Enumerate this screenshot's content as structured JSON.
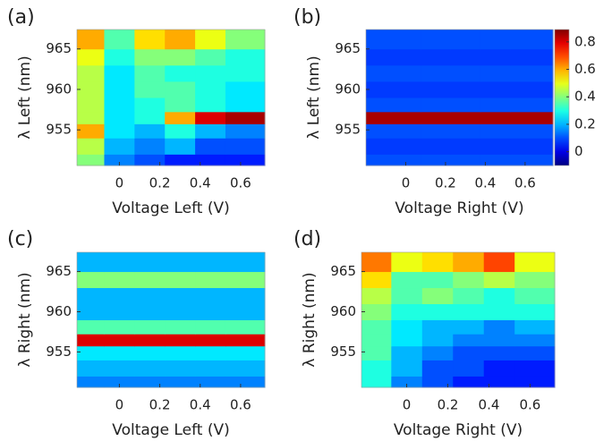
{
  "chart_data": [
    {
      "type": "heatmap",
      "title": "(a)",
      "xlabel": "Voltage Left (V)",
      "ylabel": "λ Left (nm)",
      "x": [
        -0.15,
        0,
        0.15,
        0.3,
        0.45,
        0.6
      ],
      "y": [
        951,
        953,
        955,
        956.5,
        958,
        960,
        962,
        964,
        966
      ],
      "z": [
        [
          0.4,
          0.15,
          0.1,
          0.05,
          0.05,
          0.05
        ],
        [
          0.45,
          0.2,
          0.15,
          0.2,
          0.1,
          0.1
        ],
        [
          0.6,
          0.25,
          0.2,
          0.3,
          0.2,
          0.15
        ],
        [
          0.45,
          0.25,
          0.3,
          0.6,
          0.8,
          0.85
        ],
        [
          0.45,
          0.25,
          0.3,
          0.35,
          0.3,
          0.25
        ],
        [
          0.45,
          0.25,
          0.35,
          0.35,
          0.3,
          0.25
        ],
        [
          0.45,
          0.25,
          0.35,
          0.3,
          0.3,
          0.3
        ],
        [
          0.5,
          0.3,
          0.4,
          0.4,
          0.35,
          0.3
        ],
        [
          0.6,
          0.35,
          0.55,
          0.6,
          0.5,
          0.4
        ]
      ],
      "xlim": [
        -0.21,
        0.72
      ],
      "ylim": [
        950.6,
        967.4
      ],
      "xticks": [
        0,
        0.2,
        0.4,
        0.6
      ],
      "yticks": [
        955,
        960,
        965
      ],
      "clim": [
        -0.1,
        0.89
      ]
    },
    {
      "type": "heatmap",
      "title": "(b)",
      "xlabel": "Voltage Right (V)",
      "ylabel": "λ Left (nm)",
      "x": [
        -0.15,
        0,
        0.15,
        0.3,
        0.45,
        0.6
      ],
      "y": [
        951,
        953,
        955,
        956.5,
        958,
        960,
        962,
        964,
        966
      ],
      "z": [
        [
          0.1,
          0.1,
          0.1,
          0.1,
          0.1,
          0.1
        ],
        [
          0.08,
          0.08,
          0.08,
          0.08,
          0.08,
          0.08
        ],
        [
          0.1,
          0.1,
          0.1,
          0.1,
          0.1,
          0.1
        ],
        [
          0.85,
          0.85,
          0.85,
          0.85,
          0.85,
          0.85
        ],
        [
          0.1,
          0.1,
          0.1,
          0.1,
          0.1,
          0.1
        ],
        [
          0.08,
          0.08,
          0.08,
          0.08,
          0.08,
          0.08
        ],
        [
          0.1,
          0.1,
          0.1,
          0.1,
          0.1,
          0.1
        ],
        [
          0.08,
          0.08,
          0.08,
          0.08,
          0.08,
          0.08
        ],
        [
          0.1,
          0.1,
          0.1,
          0.1,
          0.1,
          0.1
        ]
      ],
      "xlim": [
        -0.2,
        0.74
      ],
      "ylim": [
        950.6,
        967.4
      ],
      "xticks": [
        0,
        0.2,
        0.4,
        0.6
      ],
      "yticks": [
        955,
        960,
        965
      ],
      "clim": [
        -0.1,
        0.89
      ],
      "colorbar": {
        "ticks": [
          0,
          0.2,
          0.4,
          0.6,
          0.8
        ]
      }
    },
    {
      "type": "heatmap",
      "title": "(c)",
      "xlabel": "Voltage Left (V)",
      "ylabel": "λ Right (nm)",
      "x": [
        -0.15,
        0,
        0.15,
        0.3,
        0.45,
        0.6
      ],
      "y": [
        951,
        953,
        955,
        956.5,
        958,
        960,
        962,
        964,
        966
      ],
      "z": [
        [
          0.15,
          0.15,
          0.15,
          0.15,
          0.15,
          0.15
        ],
        [
          0.2,
          0.2,
          0.2,
          0.2,
          0.2,
          0.2
        ],
        [
          0.25,
          0.25,
          0.25,
          0.25,
          0.25,
          0.25
        ],
        [
          0.8,
          0.8,
          0.8,
          0.8,
          0.8,
          0.8
        ],
        [
          0.35,
          0.35,
          0.35,
          0.35,
          0.35,
          0.35
        ],
        [
          0.2,
          0.2,
          0.2,
          0.2,
          0.2,
          0.2
        ],
        [
          0.2,
          0.2,
          0.2,
          0.2,
          0.2,
          0.2
        ],
        [
          0.4,
          0.4,
          0.4,
          0.4,
          0.4,
          0.4
        ],
        [
          0.2,
          0.2,
          0.2,
          0.2,
          0.2,
          0.2
        ]
      ],
      "xlim": [
        -0.21,
        0.72
      ],
      "ylim": [
        950.6,
        967.4
      ],
      "xticks": [
        0,
        0.2,
        0.4,
        0.6
      ],
      "yticks": [
        955,
        960,
        965
      ],
      "clim": [
        -0.1,
        0.89
      ]
    },
    {
      "type": "heatmap",
      "title": "(d)",
      "xlabel": "Voltage Right (V)",
      "ylabel": "λ Right (nm)",
      "x": [
        -0.15,
        0,
        0.15,
        0.3,
        0.45,
        0.6
      ],
      "y": [
        951,
        953,
        955,
        956.5,
        958,
        960,
        962,
        964,
        966
      ],
      "z": [
        [
          0.3,
          0.15,
          0.1,
          0.05,
          0.05,
          0.05
        ],
        [
          0.3,
          0.2,
          0.1,
          0.1,
          0.05,
          0.05
        ],
        [
          0.35,
          0.2,
          0.15,
          0.1,
          0.1,
          0.1
        ],
        [
          0.35,
          0.25,
          0.2,
          0.15,
          0.15,
          0.15
        ],
        [
          0.35,
          0.25,
          0.2,
          0.2,
          0.15,
          0.2
        ],
        [
          0.4,
          0.3,
          0.3,
          0.3,
          0.3,
          0.3
        ],
        [
          0.45,
          0.35,
          0.4,
          0.35,
          0.3,
          0.35
        ],
        [
          0.55,
          0.35,
          0.35,
          0.4,
          0.45,
          0.4
        ],
        [
          0.65,
          0.5,
          0.55,
          0.6,
          0.7,
          0.5
        ]
      ],
      "xlim": [
        -0.22,
        0.72
      ],
      "ylim": [
        950.6,
        967.4
      ],
      "xticks": [
        0,
        0.2,
        0.4,
        0.6
      ],
      "yticks": [
        955,
        960,
        965
      ],
      "clim": [
        -0.1,
        0.89
      ]
    }
  ]
}
